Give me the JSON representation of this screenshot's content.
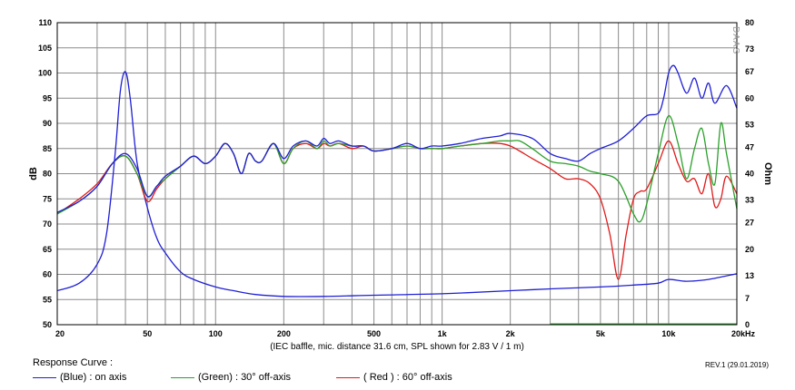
{
  "chart_data": {
    "type": "line",
    "xlabel": "(IEC baffle, mic. distance 31.6 cm, SPL shown for 2.83 V / 1 m)",
    "ylabel_left": "dB",
    "ylabel_right": "Ohm",
    "watermark": "DAAS",
    "x_scale": "log",
    "xlim": [
      20,
      20000
    ],
    "ylim_left": [
      50,
      110
    ],
    "ylim_right": [
      0,
      80
    ],
    "x_ticks": [
      {
        "v": 20,
        "label": "20"
      },
      {
        "v": 50,
        "label": "50"
      },
      {
        "v": 100,
        "label": "100"
      },
      {
        "v": 200,
        "label": "200"
      },
      {
        "v": 500,
        "label": "500"
      },
      {
        "v": 1000,
        "label": "1k"
      },
      {
        "v": 2000,
        "label": "2k"
      },
      {
        "v": 5000,
        "label": "5k"
      },
      {
        "v": 10000,
        "label": "10k"
      },
      {
        "v": 20000,
        "label": "20kHz"
      }
    ],
    "y_ticks_left": [
      "50",
      "55",
      "60",
      "65",
      "70",
      "75",
      "80",
      "85",
      "90",
      "95",
      "100",
      "105",
      "110"
    ],
    "y_ticks_right": [
      {
        "v": 0,
        "label": "0"
      },
      {
        "v": 7,
        "label": "7"
      },
      {
        "v": 13,
        "label": "13"
      },
      {
        "v": 20,
        "label": "20"
      },
      {
        "v": 27,
        "label": "27"
      },
      {
        "v": 33,
        "label": "33"
      },
      {
        "v": 40,
        "label": "40"
      },
      {
        "v": 47,
        "label": "47"
      },
      {
        "v": 53,
        "label": "53"
      },
      {
        "v": 60,
        "label": "60"
      },
      {
        "v": 67,
        "label": "67"
      },
      {
        "v": 73,
        "label": "73"
      },
      {
        "v": 80,
        "label": "80"
      }
    ],
    "grid": true,
    "series": [
      {
        "name": "(Blue)  : on axis",
        "color": "#1f1fd6",
        "axis": "left",
        "points": [
          [
            20,
            72.3
          ],
          [
            25,
            74.5
          ],
          [
            30,
            77.5
          ],
          [
            35,
            82
          ],
          [
            40,
            84
          ],
          [
            45,
            81
          ],
          [
            50,
            75.5
          ],
          [
            55,
            77.5
          ],
          [
            60,
            79.5
          ],
          [
            70,
            81.5
          ],
          [
            80,
            83.5
          ],
          [
            90,
            82
          ],
          [
            100,
            83.5
          ],
          [
            110,
            86
          ],
          [
            120,
            84
          ],
          [
            130,
            80
          ],
          [
            140,
            84
          ],
          [
            150,
            82.5
          ],
          [
            160,
            82.5
          ],
          [
            180,
            86
          ],
          [
            200,
            83
          ],
          [
            220,
            85.5
          ],
          [
            250,
            86.5
          ],
          [
            280,
            85.5
          ],
          [
            300,
            87
          ],
          [
            320,
            86
          ],
          [
            350,
            86.5
          ],
          [
            400,
            85.5
          ],
          [
            450,
            85.5
          ],
          [
            500,
            84.5
          ],
          [
            600,
            85
          ],
          [
            700,
            86
          ],
          [
            800,
            85
          ],
          [
            900,
            85.5
          ],
          [
            1000,
            85.5
          ],
          [
            1200,
            86
          ],
          [
            1500,
            87
          ],
          [
            1800,
            87.5
          ],
          [
            2000,
            88
          ],
          [
            2500,
            87
          ],
          [
            3000,
            84
          ],
          [
            3500,
            83
          ],
          [
            4000,
            82.5
          ],
          [
            4500,
            84
          ],
          [
            5000,
            85
          ],
          [
            6000,
            86.5
          ],
          [
            7000,
            89
          ],
          [
            8000,
            91.5
          ],
          [
            9000,
            92
          ],
          [
            9500,
            95
          ],
          [
            10000,
            100
          ],
          [
            10500,
            101.5
          ],
          [
            11000,
            100
          ],
          [
            12000,
            96
          ],
          [
            13000,
            99
          ],
          [
            14000,
            95
          ],
          [
            15000,
            98
          ],
          [
            16000,
            94
          ],
          [
            18000,
            97.5
          ],
          [
            20000,
            93
          ]
        ]
      },
      {
        "name": "(Green) : 30° off-axis",
        "color": "#2aa02a",
        "axis": "left",
        "points": [
          [
            20,
            72
          ],
          [
            25,
            74.5
          ],
          [
            30,
            77.5
          ],
          [
            35,
            82
          ],
          [
            40,
            83.5
          ],
          [
            45,
            80
          ],
          [
            50,
            75.5
          ],
          [
            55,
            77.5
          ],
          [
            60,
            79
          ],
          [
            70,
            81.5
          ],
          [
            80,
            83.5
          ],
          [
            90,
            82
          ],
          [
            100,
            83.5
          ],
          [
            110,
            86
          ],
          [
            120,
            84
          ],
          [
            130,
            80
          ],
          [
            140,
            84
          ],
          [
            150,
            82.5
          ],
          [
            160,
            82.5
          ],
          [
            180,
            86
          ],
          [
            200,
            82
          ],
          [
            220,
            85
          ],
          [
            250,
            86.5
          ],
          [
            280,
            85
          ],
          [
            300,
            86.5
          ],
          [
            320,
            85.5
          ],
          [
            350,
            86
          ],
          [
            400,
            85.5
          ],
          [
            450,
            85.5
          ],
          [
            500,
            84.5
          ],
          [
            600,
            85
          ],
          [
            700,
            85.5
          ],
          [
            800,
            85
          ],
          [
            900,
            85
          ],
          [
            1000,
            85
          ],
          [
            1200,
            85.5
          ],
          [
            1500,
            86
          ],
          [
            1800,
            86.5
          ],
          [
            2000,
            86.5
          ],
          [
            2200,
            86.5
          ],
          [
            2500,
            85
          ],
          [
            3000,
            82.5
          ],
          [
            3500,
            82
          ],
          [
            4000,
            81.5
          ],
          [
            4500,
            80.5
          ],
          [
            5000,
            80
          ],
          [
            6000,
            78.5
          ],
          [
            7000,
            72
          ],
          [
            7500,
            70.5
          ],
          [
            8000,
            74
          ],
          [
            9000,
            84
          ],
          [
            10000,
            91.5
          ],
          [
            11000,
            86
          ],
          [
            12000,
            79
          ],
          [
            13000,
            85
          ],
          [
            14000,
            89
          ],
          [
            15000,
            82
          ],
          [
            16000,
            78
          ],
          [
            17000,
            90
          ],
          [
            18000,
            84
          ],
          [
            20000,
            73
          ]
        ]
      },
      {
        "name": "( Red ) : 60° off-axis",
        "color": "#e01a1a",
        "axis": "left",
        "points": [
          [
            20,
            72
          ],
          [
            25,
            75
          ],
          [
            30,
            78
          ],
          [
            35,
            82
          ],
          [
            40,
            83.5
          ],
          [
            45,
            80
          ],
          [
            50,
            74.5
          ],
          [
            55,
            77
          ],
          [
            60,
            79
          ],
          [
            70,
            81.5
          ],
          [
            80,
            83.5
          ],
          [
            90,
            82
          ],
          [
            100,
            83.5
          ],
          [
            110,
            86
          ],
          [
            120,
            84
          ],
          [
            130,
            80
          ],
          [
            140,
            84
          ],
          [
            150,
            82.5
          ],
          [
            160,
            82.5
          ],
          [
            180,
            86
          ],
          [
            200,
            82
          ],
          [
            220,
            85
          ],
          [
            250,
            86
          ],
          [
            280,
            85
          ],
          [
            300,
            86
          ],
          [
            320,
            85.5
          ],
          [
            350,
            86
          ],
          [
            400,
            85
          ],
          [
            450,
            85.5
          ],
          [
            500,
            84.5
          ],
          [
            600,
            85
          ],
          [
            700,
            85.5
          ],
          [
            800,
            85
          ],
          [
            900,
            85
          ],
          [
            1000,
            85
          ],
          [
            1200,
            85.5
          ],
          [
            1500,
            86
          ],
          [
            1800,
            86
          ],
          [
            2000,
            85.5
          ],
          [
            2200,
            84.5
          ],
          [
            2500,
            83
          ],
          [
            3000,
            81
          ],
          [
            3500,
            79
          ],
          [
            4000,
            79
          ],
          [
            4500,
            78
          ],
          [
            5000,
            75
          ],
          [
            5500,
            68
          ],
          [
            6000,
            59
          ],
          [
            6500,
            68
          ],
          [
            7000,
            75
          ],
          [
            7500,
            76.5
          ],
          [
            8000,
            77
          ],
          [
            9000,
            82
          ],
          [
            10000,
            86.5
          ],
          [
            11000,
            82
          ],
          [
            12000,
            78.5
          ],
          [
            13000,
            79
          ],
          [
            14000,
            76
          ],
          [
            15000,
            80
          ],
          [
            16000,
            73.5
          ],
          [
            17000,
            75
          ],
          [
            18000,
            79.5
          ],
          [
            20000,
            76
          ]
        ]
      },
      {
        "name": "Impedance",
        "color": "#1f1fd6",
        "axis": "right",
        "points": [
          [
            20,
            9
          ],
          [
            25,
            11
          ],
          [
            30,
            16
          ],
          [
            33,
            24
          ],
          [
            36,
            45
          ],
          [
            38,
            62
          ],
          [
            40,
            67
          ],
          [
            42,
            60
          ],
          [
            45,
            43
          ],
          [
            50,
            31
          ],
          [
            55,
            23
          ],
          [
            60,
            19
          ],
          [
            70,
            14
          ],
          [
            80,
            12
          ],
          [
            100,
            10
          ],
          [
            120,
            9
          ],
          [
            150,
            8
          ],
          [
            200,
            7.5
          ],
          [
            300,
            7.5
          ],
          [
            500,
            7.8
          ],
          [
            1000,
            8.2
          ],
          [
            2000,
            9
          ],
          [
            3000,
            9.5
          ],
          [
            5000,
            10
          ],
          [
            7000,
            10.5
          ],
          [
            9000,
            11
          ],
          [
            10000,
            12
          ],
          [
            12000,
            11.5
          ],
          [
            15000,
            12
          ],
          [
            20000,
            13.5
          ]
        ]
      }
    ],
    "legend_title": "Response Curve :",
    "legend": [
      {
        "label": "(Blue)  : on axis",
        "color": "#1f1fd6"
      },
      {
        "label": "(Green) : 30° off-axis",
        "color": "#2aa02a"
      },
      {
        "label": "( Red ) : 60° off-axis",
        "color": "#e01a1a"
      }
    ],
    "revision": "REV.1 (29.01.2019)"
  }
}
